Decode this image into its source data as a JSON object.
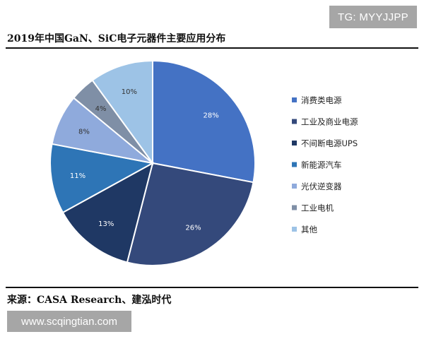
{
  "watermark_top": "TG: MYYJJPP",
  "watermark_bottom": "www.scqingtian.com",
  "source": "来源：CASA Research、建泓时代",
  "chart_data": {
    "type": "pie",
    "title": "2019年中国GaN、SiC电子元器件主要应用分布",
    "legend_position": "right",
    "slices": [
      {
        "name": "消费类电源",
        "value": 28,
        "label": "28%",
        "color": "#4472c4",
        "label_color": "#ffffff"
      },
      {
        "name": "工业及商业电源",
        "value": 26,
        "label": "26%",
        "color": "#34497b",
        "label_color": "#ffffff"
      },
      {
        "name": "不间断电源UPS",
        "value": 13,
        "label": "13%",
        "color": "#1f3864",
        "label_color": "#ffffff"
      },
      {
        "name": "新能源汽车",
        "value": 11,
        "label": "11%",
        "color": "#2e75b6",
        "label_color": "#ffffff"
      },
      {
        "name": "光伏逆变器",
        "value": 8,
        "label": "8%",
        "color": "#8faadc",
        "label_color": "#333333"
      },
      {
        "name": "工业电机",
        "value": 4,
        "label": "4%",
        "color": "#7f8fa6",
        "label_color": "#333333"
      },
      {
        "name": "其他",
        "value": 10,
        "label": "10%",
        "color": "#9dc3e6",
        "label_color": "#333333"
      }
    ]
  }
}
